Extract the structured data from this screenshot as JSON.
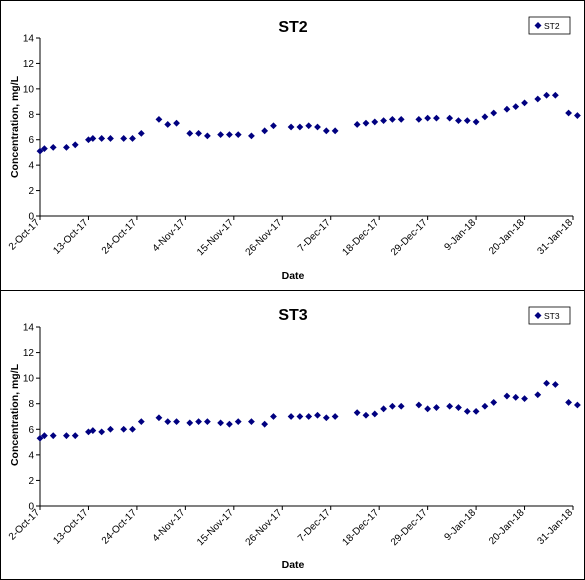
{
  "chart_data": [
    {
      "type": "scatter",
      "title": "ST2",
      "xlabel": "Date",
      "ylabel": "Concentration, mg/L",
      "ylim": [
        0,
        14
      ],
      "yticks": [
        "0",
        "2",
        "4",
        "6",
        "8",
        "10",
        "12",
        "14"
      ],
      "xlim": [
        "2017-10-02",
        "2018-01-31"
      ],
      "xticks": [
        {
          "date": "2017-10-02",
          "label": "2-Oct-17"
        },
        {
          "date": "2017-10-13",
          "label": "13-Oct-17"
        },
        {
          "date": "2017-10-24",
          "label": "24-Oct-17"
        },
        {
          "date": "2017-11-04",
          "label": "4-Nov-17"
        },
        {
          "date": "2017-11-15",
          "label": "15-Nov-17"
        },
        {
          "date": "2017-11-26",
          "label": "26-Nov-17"
        },
        {
          "date": "2017-12-07",
          "label": "7-Dec-17"
        },
        {
          "date": "2017-12-18",
          "label": "18-Dec-17"
        },
        {
          "date": "2017-12-29",
          "label": "29-Dec-17"
        },
        {
          "date": "2018-01-09",
          "label": "9-Jan-18"
        },
        {
          "date": "2018-01-20",
          "label": "20-Jan-18"
        },
        {
          "date": "2018-01-31",
          "label": "31-Jan-18"
        }
      ],
      "grid": false,
      "legend_position": "top-right",
      "marker_color": "#000080",
      "series": [
        {
          "name": "ST2",
          "points": [
            [
              "2017-10-02",
              5.1
            ],
            [
              "2017-10-03",
              5.3
            ],
            [
              "2017-10-05",
              5.4
            ],
            [
              "2017-10-08",
              5.4
            ],
            [
              "2017-10-10",
              5.6
            ],
            [
              "2017-10-13",
              6.0
            ],
            [
              "2017-10-14",
              6.1
            ],
            [
              "2017-10-16",
              6.1
            ],
            [
              "2017-10-18",
              6.1
            ],
            [
              "2017-10-21",
              6.1
            ],
            [
              "2017-10-23",
              6.1
            ],
            [
              "2017-10-25",
              6.5
            ],
            [
              "2017-10-29",
              7.6
            ],
            [
              "2017-10-31",
              7.2
            ],
            [
              "2017-11-02",
              7.3
            ],
            [
              "2017-11-05",
              6.5
            ],
            [
              "2017-11-07",
              6.5
            ],
            [
              "2017-11-09",
              6.3
            ],
            [
              "2017-11-12",
              6.4
            ],
            [
              "2017-11-14",
              6.4
            ],
            [
              "2017-11-16",
              6.4
            ],
            [
              "2017-11-19",
              6.3
            ],
            [
              "2017-11-22",
              6.7
            ],
            [
              "2017-11-24",
              7.1
            ],
            [
              "2017-11-28",
              7.0
            ],
            [
              "2017-11-30",
              7.0
            ],
            [
              "2017-12-02",
              7.1
            ],
            [
              "2017-12-04",
              7.0
            ],
            [
              "2017-12-06",
              6.7
            ],
            [
              "2017-12-08",
              6.7
            ],
            [
              "2017-12-13",
              7.2
            ],
            [
              "2017-12-15",
              7.3
            ],
            [
              "2017-12-17",
              7.4
            ],
            [
              "2017-12-19",
              7.5
            ],
            [
              "2017-12-21",
              7.6
            ],
            [
              "2017-12-23",
              7.6
            ],
            [
              "2017-12-27",
              7.6
            ],
            [
              "2017-12-29",
              7.7
            ],
            [
              "2017-12-31",
              7.7
            ],
            [
              "2018-01-03",
              7.7
            ],
            [
              "2018-01-05",
              7.5
            ],
            [
              "2018-01-07",
              7.5
            ],
            [
              "2018-01-09",
              7.4
            ],
            [
              "2018-01-11",
              7.8
            ],
            [
              "2018-01-13",
              8.1
            ],
            [
              "2018-01-16",
              8.4
            ],
            [
              "2018-01-18",
              8.6
            ],
            [
              "2018-01-20",
              8.9
            ],
            [
              "2018-01-23",
              9.2
            ],
            [
              "2018-01-25",
              9.5
            ],
            [
              "2018-01-27",
              9.5
            ],
            [
              "2018-01-30",
              8.1
            ],
            [
              "2018-02-01",
              7.9
            ]
          ]
        }
      ]
    },
    {
      "type": "scatter",
      "title": "ST3",
      "xlabel": "Date",
      "ylabel": "Concentration, mg/L",
      "ylim": [
        0,
        14
      ],
      "yticks": [
        "0",
        "2",
        "4",
        "6",
        "8",
        "10",
        "12",
        "14"
      ],
      "xlim": [
        "2017-10-02",
        "2018-01-31"
      ],
      "xticks": [
        {
          "date": "2017-10-02",
          "label": "2-Oct-17"
        },
        {
          "date": "2017-10-13",
          "label": "13-Oct-17"
        },
        {
          "date": "2017-10-24",
          "label": "24-Oct-17"
        },
        {
          "date": "2017-11-04",
          "label": "4-Nov-17"
        },
        {
          "date": "2017-11-15",
          "label": "15-Nov-17"
        },
        {
          "date": "2017-11-26",
          "label": "26-Nov-17"
        },
        {
          "date": "2017-12-07",
          "label": "7-Dec-17"
        },
        {
          "date": "2017-12-18",
          "label": "18-Dec-17"
        },
        {
          "date": "2017-12-29",
          "label": "29-Dec-17"
        },
        {
          "date": "2018-01-09",
          "label": "9-Jan-18"
        },
        {
          "date": "2018-01-20",
          "label": "20-Jan-18"
        },
        {
          "date": "2018-01-31",
          "label": "31-Jan-18"
        }
      ],
      "grid": false,
      "legend_position": "top-right",
      "marker_color": "#000080",
      "series": [
        {
          "name": "ST3",
          "points": [
            [
              "2017-10-02",
              5.3
            ],
            [
              "2017-10-03",
              5.5
            ],
            [
              "2017-10-05",
              5.5
            ],
            [
              "2017-10-08",
              5.5
            ],
            [
              "2017-10-10",
              5.5
            ],
            [
              "2017-10-13",
              5.8
            ],
            [
              "2017-10-14",
              5.9
            ],
            [
              "2017-10-16",
              5.8
            ],
            [
              "2017-10-18",
              6.0
            ],
            [
              "2017-10-21",
              6.0
            ],
            [
              "2017-10-23",
              6.0
            ],
            [
              "2017-10-25",
              6.6
            ],
            [
              "2017-10-29",
              6.9
            ],
            [
              "2017-10-31",
              6.6
            ],
            [
              "2017-11-02",
              6.6
            ],
            [
              "2017-11-05",
              6.5
            ],
            [
              "2017-11-07",
              6.6
            ],
            [
              "2017-11-09",
              6.6
            ],
            [
              "2017-11-12",
              6.5
            ],
            [
              "2017-11-14",
              6.4
            ],
            [
              "2017-11-16",
              6.6
            ],
            [
              "2017-11-19",
              6.6
            ],
            [
              "2017-11-22",
              6.4
            ],
            [
              "2017-11-24",
              7.0
            ],
            [
              "2017-11-28",
              7.0
            ],
            [
              "2017-11-30",
              7.0
            ],
            [
              "2017-12-02",
              7.0
            ],
            [
              "2017-12-04",
              7.1
            ],
            [
              "2017-12-06",
              6.9
            ],
            [
              "2017-12-08",
              7.0
            ],
            [
              "2017-12-13",
              7.3
            ],
            [
              "2017-12-15",
              7.1
            ],
            [
              "2017-12-17",
              7.2
            ],
            [
              "2017-12-19",
              7.6
            ],
            [
              "2017-12-21",
              7.8
            ],
            [
              "2017-12-23",
              7.8
            ],
            [
              "2017-12-27",
              7.9
            ],
            [
              "2017-12-29",
              7.6
            ],
            [
              "2017-12-31",
              7.7
            ],
            [
              "2018-01-03",
              7.8
            ],
            [
              "2018-01-05",
              7.7
            ],
            [
              "2018-01-07",
              7.4
            ],
            [
              "2018-01-09",
              7.4
            ],
            [
              "2018-01-11",
              7.8
            ],
            [
              "2018-01-13",
              8.1
            ],
            [
              "2018-01-16",
              8.6
            ],
            [
              "2018-01-18",
              8.5
            ],
            [
              "2018-01-20",
              8.4
            ],
            [
              "2018-01-23",
              8.7
            ],
            [
              "2018-01-25",
              9.6
            ],
            [
              "2018-01-27",
              9.5
            ],
            [
              "2018-01-30",
              8.1
            ],
            [
              "2018-02-01",
              7.9
            ]
          ]
        }
      ]
    }
  ]
}
